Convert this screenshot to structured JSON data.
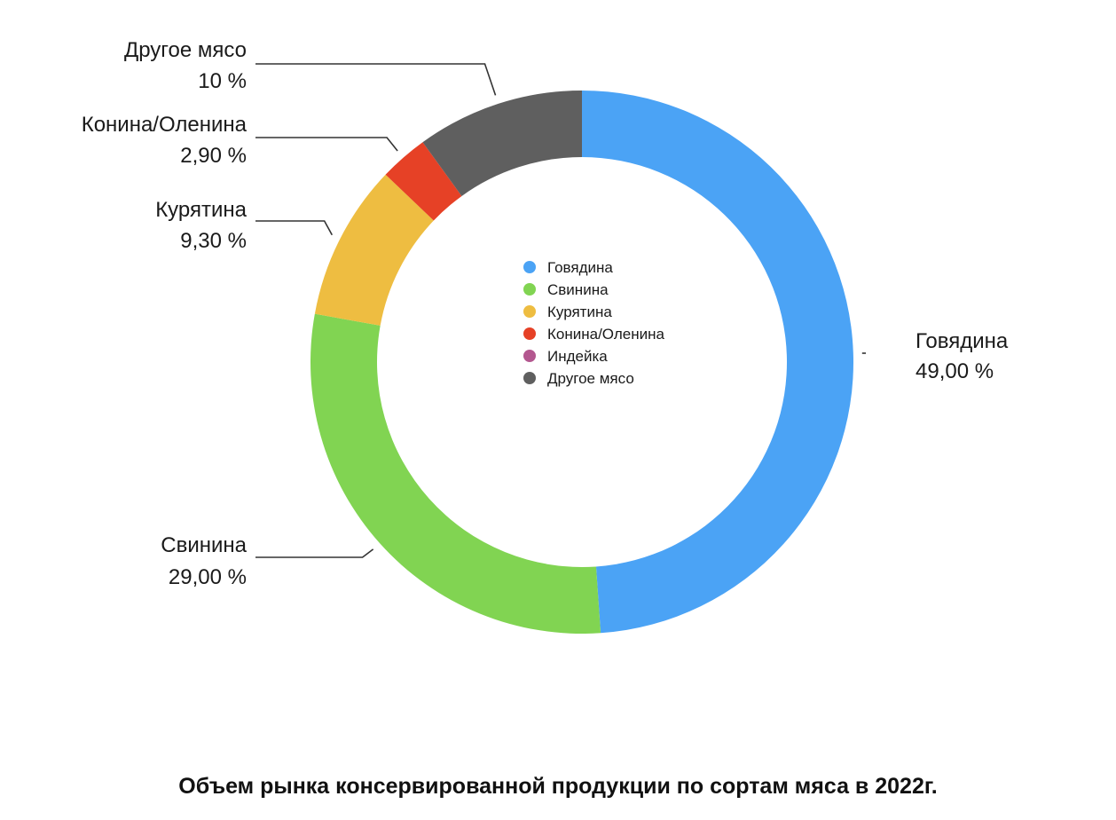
{
  "chart_data": {
    "type": "pie",
    "variant": "donut",
    "title": "Объем рынка консервированной продукции по сортам мяса в 2022г.",
    "slices": [
      {
        "name": "Говядина",
        "value": 49.0,
        "value_label": "49,00 %",
        "color": "#4ba3f5"
      },
      {
        "name": "Свинина",
        "value": 29.0,
        "value_label": "29,00 %",
        "color": "#81d452"
      },
      {
        "name": "Курятина",
        "value": 9.3,
        "value_label": "9,30 %",
        "color": "#eebd41"
      },
      {
        "name": "Конина/Оленина",
        "value": 2.9,
        "value_label": "2,90 %",
        "color": "#e64126"
      },
      {
        "name": "Индейка",
        "value": 0,
        "value_label": "",
        "color": "#b3578f"
      },
      {
        "name": "Другое мясо",
        "value": 10,
        "value_label": "10 %",
        "color": "#5f5f5f"
      }
    ],
    "legend": {
      "placement": "center",
      "entries": [
        "Говядина",
        "Свинина",
        "Курятина",
        "Конина/Оленина",
        "Индейка",
        "Другое мясо"
      ]
    }
  }
}
